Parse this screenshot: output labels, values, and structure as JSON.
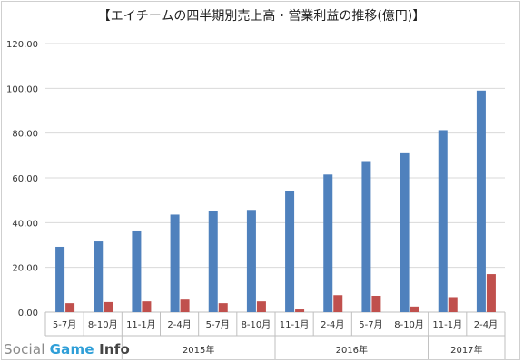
{
  "chart_data": {
    "type": "bar",
    "title": "【エイチームの四半期別売上高・営業利益の推移(億円)】",
    "categories": [
      "5-7月",
      "8-10月",
      "11-1月",
      "2-4月",
      "5-7月",
      "8-10月",
      "11-1月",
      "2-4月",
      "5-7月",
      "8-10月",
      "11-1月",
      "2-4月"
    ],
    "groups": [
      {
        "label": "2015年",
        "start": 2,
        "end": 5
      },
      {
        "label": "2016年",
        "start": 6,
        "end": 9
      },
      {
        "label": "2017年",
        "start": 10,
        "end": 11
      }
    ],
    "series": [
      {
        "values": [
          29.2,
          31.6,
          36.5,
          43.6,
          45.2,
          45.7,
          54.0,
          61.5,
          67.5,
          71.0,
          81.3,
          99.0
        ],
        "color": "#4f81bd"
      },
      {
        "values": [
          4.0,
          4.5,
          4.8,
          5.6,
          4.0,
          4.8,
          1.2,
          7.6,
          7.3,
          2.5,
          6.7,
          17.0
        ],
        "color": "#c0504d"
      }
    ],
    "yticks": [
      "0.00",
      "20.00",
      "40.00",
      "60.00",
      "80.00",
      "100.00",
      "120.00"
    ],
    "ylim": [
      0,
      120
    ],
    "grid": true,
    "legend": "none"
  },
  "watermark": {
    "social": "Social ",
    "game": "Game",
    "info": " Info"
  }
}
